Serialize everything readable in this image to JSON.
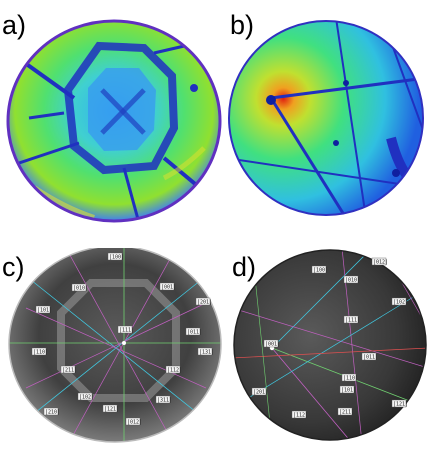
{
  "figure": {
    "panels": [
      {
        "id": "a",
        "label": "a)",
        "kind": "heatmap-kikuchi"
      },
      {
        "id": "b",
        "label": "b)",
        "kind": "heatmap-kikuchi"
      },
      {
        "id": "c",
        "label": "c)",
        "kind": "indexed-pattern",
        "indices": [
          "[100]",
          "[010]",
          "[111]",
          "[001]",
          "[101]",
          "[011]",
          "[110]",
          "[211]",
          "[112]",
          "[121]",
          "[311]",
          "[131]",
          "[102]",
          "[201]",
          "[012]",
          "[210]"
        ]
      },
      {
        "id": "d",
        "label": "d)",
        "kind": "indexed-pattern",
        "indices": [
          "[100]",
          "[010]",
          "[001]",
          "[111]",
          "[011]",
          "[110]",
          "[101]",
          "[112]",
          "[211]",
          "[121]",
          "[102]",
          "[201]",
          "[012]"
        ]
      }
    ],
    "colors": {
      "jet_low": "#1f1fd0",
      "jet_mid": "#20e080",
      "jet_high": "#e02010",
      "gray_bg": "#3a3a3a",
      "band_magenta": "#c060c0",
      "band_cyan": "#40c8e0",
      "band_green": "#70d070",
      "band_red": "#e05050"
    }
  }
}
